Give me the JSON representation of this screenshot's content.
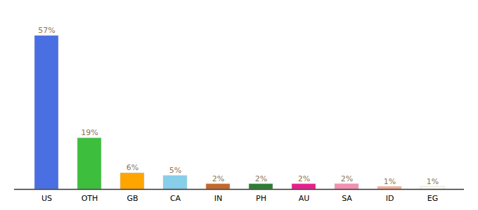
{
  "chart_data": {
    "type": "bar",
    "categories": [
      "US",
      "OTH",
      "GB",
      "CA",
      "IN",
      "PH",
      "AU",
      "SA",
      "ID",
      "EG"
    ],
    "values": [
      57,
      19,
      6,
      5,
      2,
      2,
      2,
      2,
      1,
      1
    ],
    "value_labels": [
      "57%",
      "19%",
      "6%",
      "5%",
      "2%",
      "2%",
      "2%",
      "2%",
      "1%",
      "1%"
    ],
    "colors": [
      "#4A6FE3",
      "#3DBF3D",
      "#FFA500",
      "#87CEEB",
      "#C4682A",
      "#2E7D32",
      "#E91E8C",
      "#F48FB1",
      "#FFAB91",
      "#FFFFF0"
    ],
    "ylim": [
      0,
      65
    ],
    "data_labels": true,
    "tick_labels": "x",
    "grid": false
  }
}
